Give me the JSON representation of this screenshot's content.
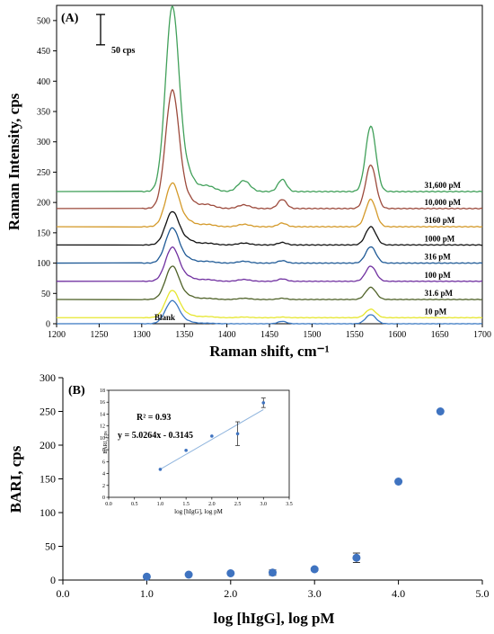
{
  "chart_data": [
    {
      "type": "line",
      "panel_label": "(A)",
      "xlabel": "Raman shift, cm⁻¹",
      "ylabel": "Raman Intensity, cps",
      "xlim": [
        1200,
        1700
      ],
      "ylim": [
        0,
        525
      ],
      "xticks": [
        1200,
        1250,
        1300,
        1350,
        1400,
        1450,
        1500,
        1550,
        1600,
        1650,
        1700
      ],
      "yticks": [
        0,
        50,
        100,
        150,
        200,
        250,
        300,
        350,
        400,
        450,
        500
      ],
      "scale_bar": {
        "label": "50 cps",
        "value": 50
      },
      "peaks": [
        {
          "center": 1336,
          "width": 8
        },
        {
          "center": 1355,
          "width": 7
        },
        {
          "center": 1376,
          "width": 9
        },
        {
          "center": 1420,
          "width": 7
        },
        {
          "center": 1465,
          "width": 5
        },
        {
          "center": 1569,
          "width": 6
        }
      ],
      "series": [
        {
          "name": "Blank",
          "color": "#3a78c2",
          "baseline": 0,
          "amplitudes": [
            38,
            3,
            1,
            0,
            4,
            15
          ]
        },
        {
          "name": "10 pM",
          "color": "#e6e62e",
          "baseline": 10,
          "amplitudes": [
            45,
            4,
            2,
            1,
            1,
            14
          ]
        },
        {
          "name": "31.6 pM",
          "color": "#4f6228",
          "baseline": 40,
          "amplitudes": [
            55,
            5,
            2,
            2,
            2,
            20
          ]
        },
        {
          "name": "100 pM",
          "color": "#7030a0",
          "baseline": 70,
          "amplitudes": [
            56,
            6,
            3,
            3,
            4,
            25
          ]
        },
        {
          "name": "316 pM",
          "color": "#1f5a96",
          "baseline": 100,
          "amplitudes": [
            58,
            6,
            3,
            3,
            4,
            27
          ]
        },
        {
          "name": "1000 pM",
          "color": "#111111",
          "baseline": 130,
          "amplitudes": [
            55,
            7,
            3,
            3,
            4,
            30
          ]
        },
        {
          "name": "3160 pM",
          "color": "#d49a2a",
          "baseline": 160,
          "amplitudes": [
            72,
            8,
            4,
            4,
            6,
            45
          ]
        },
        {
          "name": "10,000 pM",
          "color": "#9c4a3c",
          "baseline": 190,
          "amplitudes": [
            195,
            14,
            7,
            6,
            15,
            72
          ]
        },
        {
          "name": "31,600 pM",
          "color": "#41a05a",
          "baseline": 218,
          "amplitudes": [
            305,
            25,
            10,
            18,
            20,
            108
          ]
        }
      ]
    },
    {
      "type": "scatter",
      "panel_label": "(B)",
      "xlabel": "log [hIgG], log pM",
      "ylabel": "BARI, cps",
      "xlim": [
        0,
        5
      ],
      "ylim": [
        0,
        300
      ],
      "xticks": [
        "0.0",
        "1.0",
        "2.0",
        "3.0",
        "4.0",
        "5.0"
      ],
      "yticks": [
        0,
        50,
        100,
        150,
        200,
        250,
        300
      ],
      "color": "#3f73c0",
      "points": [
        {
          "x": 1.0,
          "y": 5,
          "err": 0
        },
        {
          "x": 1.5,
          "y": 8,
          "err": 0
        },
        {
          "x": 2.0,
          "y": 10,
          "err": 0
        },
        {
          "x": 2.5,
          "y": 11,
          "err": 4
        },
        {
          "x": 3.0,
          "y": 16,
          "err": 2
        },
        {
          "x": 3.5,
          "y": 33,
          "err": 7
        },
        {
          "x": 4.0,
          "y": 146,
          "err": 0
        },
        {
          "x": 4.5,
          "y": 250,
          "err": 0
        }
      ],
      "inset": {
        "xlabel": "log [hIgG],  log pM",
        "ylabel": "BARI, cps",
        "xlim": [
          0,
          3.5
        ],
        "ylim": [
          0,
          18
        ],
        "xticks": [
          "0.0",
          "0.5",
          "1.0",
          "1.5",
          "2.0",
          "2.5",
          "3.0",
          "3.5"
        ],
        "yticks": [
          0,
          2,
          4,
          6,
          8,
          10,
          12,
          14,
          16,
          18
        ],
        "r2_text": "R² = 0.93",
        "equation": "y = 5.0264x - 0.3145",
        "fit": {
          "slope": 5.0264,
          "intercept": -0.3145,
          "x_range": [
            1,
            3
          ]
        },
        "points": [
          {
            "x": 1.0,
            "y": 4.7,
            "err": 0
          },
          {
            "x": 1.5,
            "y": 7.9,
            "err": 0
          },
          {
            "x": 2.0,
            "y": 10.3,
            "err": 0
          },
          {
            "x": 2.5,
            "y": 10.7,
            "err": 2.0
          },
          {
            "x": 3.0,
            "y": 15.9,
            "err": 0.8
          }
        ]
      }
    }
  ]
}
